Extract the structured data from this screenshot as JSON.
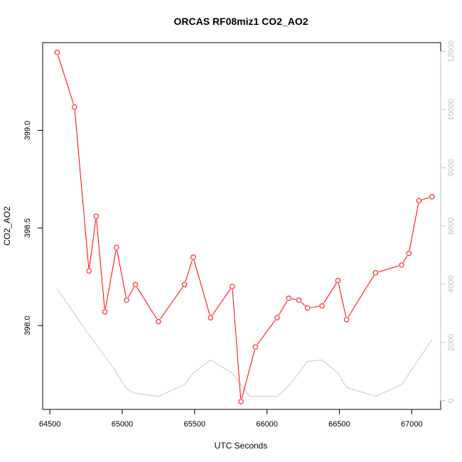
{
  "chart_data": {
    "type": "line",
    "title": "ORCAS RF08miz1 CO2_AO2",
    "xlabel": "UTC Seconds",
    "ylabel": "CO2_AO2",
    "xlim": [
      64450,
      67200
    ],
    "ylim": [
      397.57,
      399.45
    ],
    "y2lim": [
      -300,
      12300
    ],
    "x_ticks": [
      64500,
      65000,
      65500,
      66000,
      66500,
      67000
    ],
    "y_ticks": [
      398.0,
      398.5,
      399.0
    ],
    "y_tick_labels": [
      "398.0",
      "398.5",
      "399.0"
    ],
    "y2_ticks": [
      0,
      2000,
      4000,
      6000,
      8000,
      10000,
      12000
    ],
    "series": [
      {
        "color": "#ff0000",
        "markers": "open-circle",
        "x": [
          64550,
          64670,
          64770,
          64820,
          64880,
          64960,
          65030,
          65090,
          65250,
          65430,
          65490,
          65610,
          65760,
          65820,
          65920,
          66070,
          66150,
          66220,
          66280,
          66380,
          66490,
          66550,
          66750,
          66930,
          66980,
          67050,
          67140
        ],
        "y": [
          399.4,
          399.12,
          398.28,
          398.56,
          398.07,
          398.4,
          398.13,
          398.21,
          398.02,
          398.21,
          398.35,
          398.04,
          398.2,
          397.61,
          397.89,
          398.04,
          398.14,
          398.13,
          398.09,
          398.1,
          398.23,
          398.03,
          398.27,
          398.31,
          398.37,
          398.64,
          398.66
        ]
      },
      {
        "color": "#c8c8c8",
        "axis": "right",
        "x": [
          64550,
          64750,
          64950,
          65030,
          65090,
          65250,
          65430,
          65490,
          65610,
          65760,
          65880,
          66070,
          66150,
          66280,
          66380,
          66490,
          66550,
          66750,
          66930,
          67140
        ],
        "y": [
          3850,
          2400,
          1050,
          400,
          250,
          150,
          550,
          950,
          1400,
          950,
          150,
          150,
          500,
          1350,
          1400,
          950,
          450,
          150,
          550,
          2100
        ]
      }
    ]
  }
}
